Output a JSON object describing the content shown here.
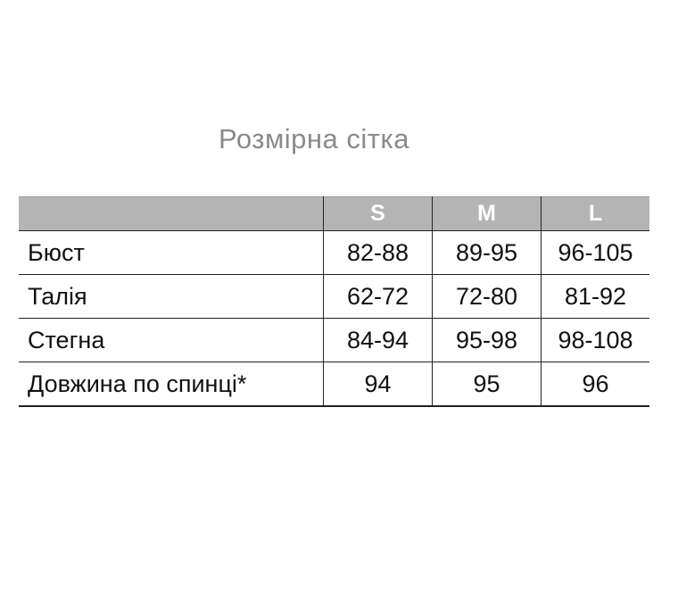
{
  "title": "Розмірна сітка",
  "table": {
    "headers": [
      "",
      "S",
      "M",
      "L"
    ],
    "rows": [
      {
        "label": "Бюст",
        "values": [
          "82-88",
          "89-95",
          "96-105"
        ]
      },
      {
        "label": "Талія",
        "values": [
          "62-72",
          "72-80",
          "81-92"
        ]
      },
      {
        "label": "Стегна",
        "values": [
          "84-94",
          "95-98",
          "98-108"
        ]
      },
      {
        "label": "Довжина по спинці*",
        "values": [
          "94",
          "95",
          "96"
        ]
      }
    ]
  },
  "colors": {
    "header_bg": "#b4b4b4",
    "title": "#8a8a8a"
  }
}
